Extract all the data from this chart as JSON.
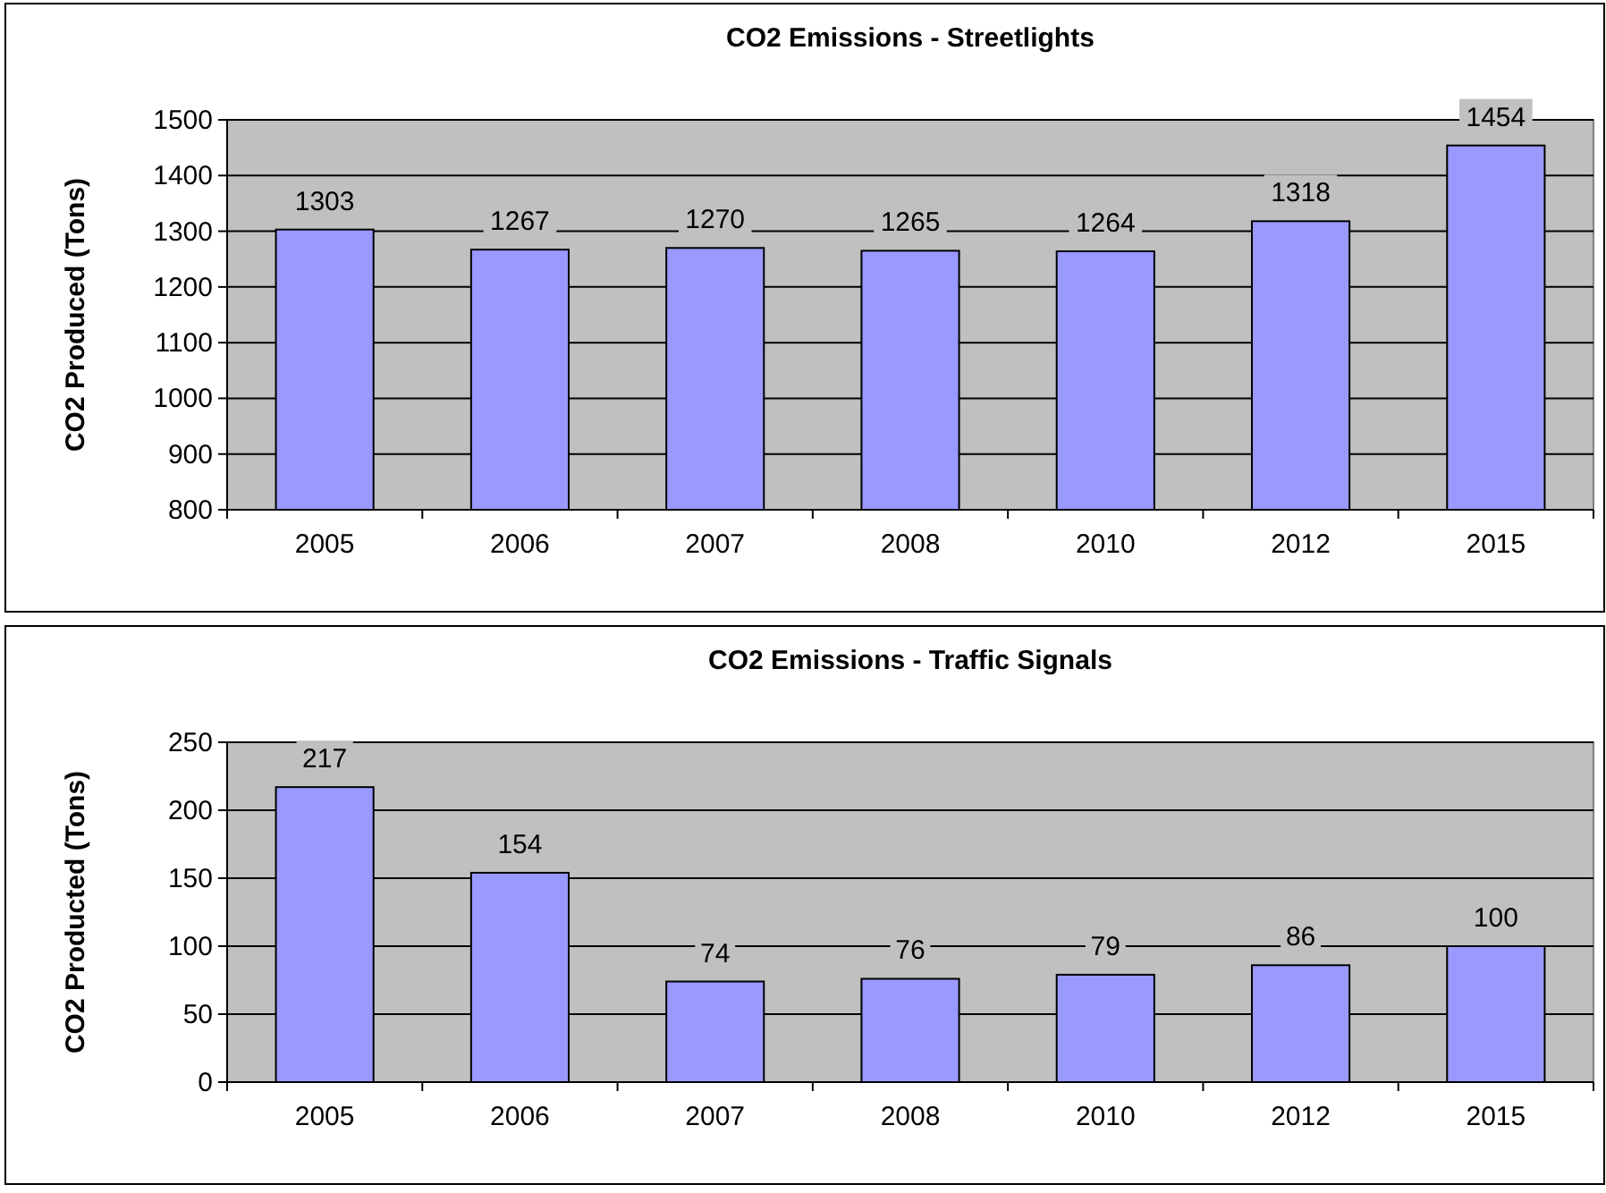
{
  "chart_data": [
    {
      "type": "bar",
      "title": "CO2 Emissions - Streetlights",
      "ylabel": "CO2 Produced (Tons)",
      "categories": [
        "2005",
        "2006",
        "2007",
        "2008",
        "2010",
        "2012",
        "2015"
      ],
      "values": [
        1303,
        1267,
        1270,
        1265,
        1264,
        1318,
        1454
      ],
      "color": "#9999ff",
      "ylim": [
        800,
        1500
      ],
      "yticks": [
        800,
        900,
        1000,
        1100,
        1200,
        1300,
        1400,
        1500
      ],
      "grid": "y",
      "data_labels": true
    },
    {
      "type": "bar",
      "title": "CO2 Emissions - Traffic Signals",
      "ylabel": "CO2 Producted (Tons)",
      "categories": [
        "2005",
        "2006",
        "2007",
        "2008",
        "2010",
        "2012",
        "2015"
      ],
      "values": [
        217,
        154,
        74,
        76,
        79,
        86,
        100
      ],
      "color": "#9999ff",
      "ylim": [
        0,
        250
      ],
      "yticks": [
        0,
        50,
        100,
        150,
        200,
        250
      ],
      "grid": "y",
      "data_labels": true
    }
  ]
}
